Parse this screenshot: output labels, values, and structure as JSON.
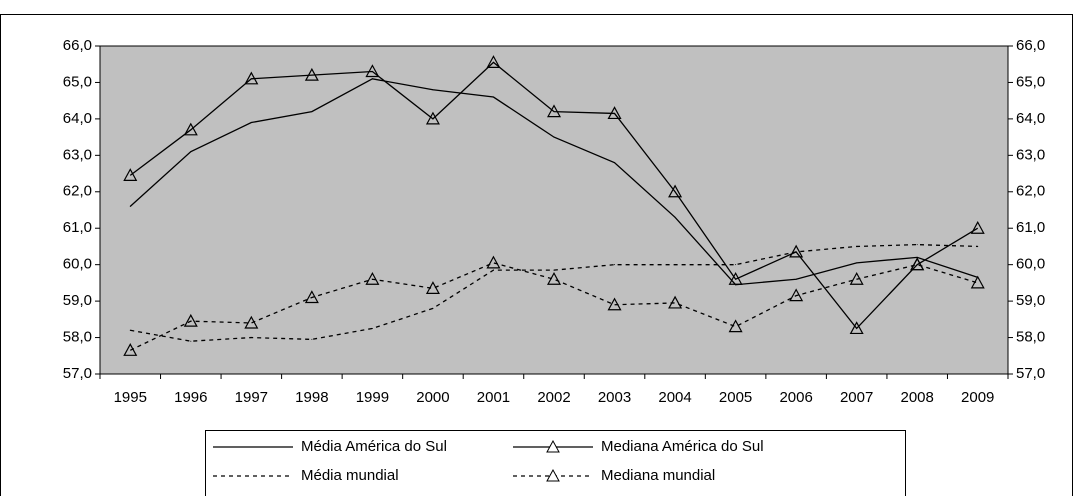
{
  "chart_data": {
    "type": "line",
    "categories": [
      "1995",
      "1996",
      "1997",
      "1998",
      "1999",
      "2000",
      "2001",
      "2002",
      "2003",
      "2004",
      "2005",
      "2006",
      "2007",
      "2008",
      "2009"
    ],
    "series": [
      {
        "name": "Média América do Sul",
        "color": "#000000",
        "dashed": false,
        "marker": "none",
        "values": [
          61.6,
          63.1,
          63.9,
          64.2,
          65.1,
          64.8,
          64.6,
          63.5,
          62.8,
          61.3,
          59.45,
          59.6,
          60.05,
          60.2,
          59.65
        ]
      },
      {
        "name": "Mediana América do Sul",
        "color": "#000000",
        "dashed": false,
        "marker": "triangle",
        "values": [
          62.45,
          63.7,
          65.1,
          65.2,
          65.3,
          64.0,
          65.55,
          64.2,
          64.15,
          62.0,
          59.6,
          60.35,
          58.25,
          60.0,
          61.0
        ]
      },
      {
        "name": "Média mundial",
        "color": "#000000",
        "dashed": true,
        "marker": "none",
        "values": [
          58.2,
          57.9,
          58.0,
          57.95,
          58.25,
          58.8,
          59.85,
          59.85,
          60.0,
          60.0,
          60.0,
          60.35,
          60.5,
          60.55,
          60.5
        ]
      },
      {
        "name": "Mediana mundial",
        "color": "#000000",
        "dashed": true,
        "marker": "triangle",
        "values": [
          57.65,
          58.45,
          58.4,
          59.1,
          59.6,
          59.35,
          60.05,
          59.6,
          58.9,
          58.95,
          58.3,
          59.15,
          59.6,
          60.0,
          59.5
        ]
      }
    ],
    "ylim": [
      57,
      66
    ],
    "yticks": [
      {
        "value": 57,
        "label": "57,0"
      },
      {
        "value": 58,
        "label": "58,0"
      },
      {
        "value": 59,
        "label": "59,0"
      },
      {
        "value": 60,
        "label": "60,0"
      },
      {
        "value": 61,
        "label": "61,0"
      },
      {
        "value": 62,
        "label": "62,0"
      },
      {
        "value": 63,
        "label": "63,0"
      },
      {
        "value": 64,
        "label": "64,0"
      },
      {
        "value": 65,
        "label": "65,0"
      },
      {
        "value": 66,
        "label": "66,0"
      }
    ],
    "plot_background": "#c0c0c0"
  }
}
